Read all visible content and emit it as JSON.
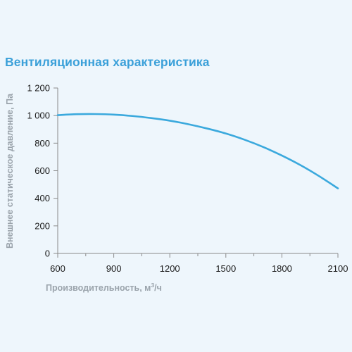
{
  "chart_data": {
    "type": "line",
    "title": "Вентиляционная характеристика",
    "xlabel": "Производительность, м",
    "xlabel_superscript": "3",
    "xlabel_suffix": "/ч",
    "ylabel": "Внешнее статическое давление, Па",
    "xlim": [
      600,
      2100
    ],
    "ylim": [
      0,
      1200
    ],
    "x_ticks": [
      600,
      900,
      1200,
      1500,
      1800,
      2100
    ],
    "x_tick_labels": [
      "600",
      "900",
      "1200",
      "1500",
      "1800",
      "2100"
    ],
    "y_ticks": [
      0,
      200,
      400,
      600,
      800,
      1000,
      1200
    ],
    "y_tick_labels": [
      "0",
      "200",
      "400",
      "600",
      "800",
      "1 000",
      "1 200"
    ],
    "grid": false,
    "series": [
      {
        "color": "#3ba9dd",
        "x": [
          600,
          700,
          800,
          900,
          1000,
          1100,
          1200,
          1300,
          1400,
          1500,
          1600,
          1700,
          1800,
          1900,
          2000,
          2100
        ],
        "y": [
          1003,
          1010,
          1011,
          1007,
          997,
          982,
          963,
          937,
          906,
          870,
          825,
          772,
          710,
          640,
          560,
          472
        ]
      }
    ]
  }
}
